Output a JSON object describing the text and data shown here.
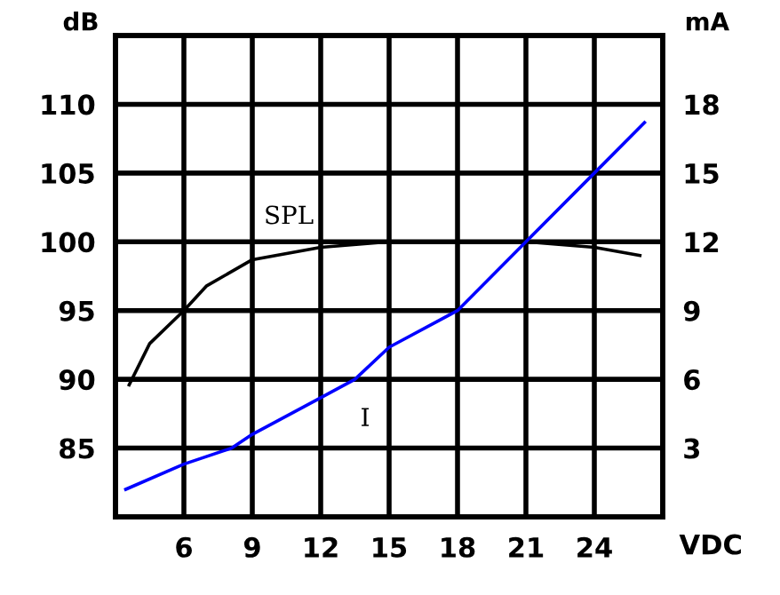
{
  "chart_data": {
    "type": "line",
    "xlabel": "VDC",
    "ylabel": "dB",
    "y2label": "mA",
    "xlim": [
      3,
      27
    ],
    "xticks": [
      6,
      9,
      12,
      15,
      18,
      21,
      24
    ],
    "ylim": [
      80,
      115
    ],
    "yticks": [
      85,
      90,
      95,
      100,
      105,
      110
    ],
    "y2lim": [
      0,
      21
    ],
    "y2ticks": [
      3,
      6,
      9,
      12,
      15,
      18
    ],
    "grid": true,
    "marker": "none",
    "line_style": "solid",
    "series": [
      {
        "color": "#000000",
        "x": [
          3.6,
          4.5,
          6,
          7,
          9,
          12,
          15,
          18,
          21,
          24,
          26
        ],
        "values": [
          89.6,
          92.6,
          95,
          96.8,
          98.7,
          99.6,
          100,
          100,
          100,
          99.6,
          99.0
        ]
      },
      {
        "color": "#0000ff",
        "axis": "y2",
        "x": [
          3.45,
          6,
          8.1,
          9,
          12,
          13.5,
          15,
          18,
          21,
          24,
          26.2
        ],
        "values": [
          1.2,
          2.3,
          3,
          3.6,
          5.2,
          6,
          7.4,
          9,
          12,
          15,
          17.2
        ]
      }
    ],
    "annotations": [
      {
        "text": "SPL",
        "x": 10.6,
        "y": 101.8
      },
      {
        "text": "I",
        "x": 13.95,
        "y": 87.1
      }
    ]
  }
}
